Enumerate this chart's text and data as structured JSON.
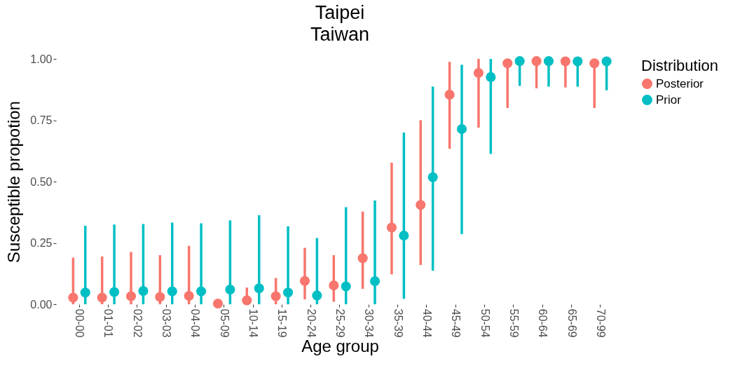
{
  "chart_data": {
    "type": "scatter",
    "title": "Taipei",
    "subtitle": "Taiwan",
    "xlabel": "Age group",
    "ylabel": "Susceptible propotion",
    "legend_title": "Distribution",
    "legend": "right",
    "grid": false,
    "marker": "circle",
    "categories": [
      "00-00",
      "01-01",
      "02-02",
      "03-03",
      "04-04",
      "05-09",
      "10-14",
      "15-19",
      "20-24",
      "25-29",
      "30-34",
      "35-39",
      "40-44",
      "45-49",
      "50-54",
      "55-59",
      "60-64",
      "65-69",
      "70-99"
    ],
    "ylim": [
      0,
      1
    ],
    "yticks": [
      {
        "value": 0,
        "label": "0.00"
      },
      {
        "value": 0.25,
        "label": "0.25"
      },
      {
        "value": 0.5,
        "label": "0.50"
      },
      {
        "value": 0.75,
        "label": "0.75"
      },
      {
        "value": 1,
        "label": "1.00"
      }
    ],
    "series": [
      {
        "name": "Posterior",
        "color": "#f8766d",
        "values": [
          0.027,
          0.027,
          0.033,
          0.03,
          0.034,
          0.003,
          0.016,
          0.033,
          0.095,
          0.077,
          0.188,
          0.313,
          0.405,
          0.854,
          0.943,
          0.982,
          0.991,
          0.99,
          0.982
        ],
        "errors": [
          [
            0,
            0.19
          ],
          [
            0,
            0.195
          ],
          [
            0,
            0.213
          ],
          [
            0,
            0.2
          ],
          [
            0,
            0.238
          ],
          null,
          [
            0,
            0.068
          ],
          [
            0,
            0.107
          ],
          [
            0.02,
            0.23
          ],
          [
            0.01,
            0.2
          ],
          [
            0.063,
            0.378
          ],
          [
            0.122,
            0.577
          ],
          [
            0.16,
            0.75
          ],
          [
            0.634,
            0.988
          ],
          [
            0.72,
            1.0
          ],
          [
            0.8,
            1.0
          ],
          [
            0.88,
            0.991
          ],
          [
            0.884,
            0.99
          ],
          [
            0.8,
            1.0
          ]
        ]
      },
      {
        "name": "Prior",
        "color": "#00bfc4",
        "values": [
          0.048,
          0.05,
          0.054,
          0.053,
          0.053,
          0.06,
          0.065,
          0.048,
          0.036,
          0.073,
          0.094,
          0.28,
          0.518,
          0.714,
          0.926,
          0.991,
          0.991,
          0.99,
          0.99
        ],
        "errors": [
          [
            0,
            0.32
          ],
          [
            0,
            0.325
          ],
          [
            0,
            0.327
          ],
          [
            0,
            0.333
          ],
          [
            0,
            0.33
          ],
          [
            0,
            0.342
          ],
          [
            0,
            0.363
          ],
          [
            0,
            0.318
          ],
          [
            0,
            0.27
          ],
          [
            0,
            0.396
          ],
          [
            0,
            0.423
          ],
          [
            0.022,
            0.7
          ],
          [
            0.137,
            0.887
          ],
          [
            0.286,
            0.976
          ],
          [
            0.613,
            1.0
          ],
          [
            0.89,
            0.991
          ],
          [
            0.887,
            0.991
          ],
          [
            0.887,
            0.99
          ],
          [
            0.872,
            0.99
          ]
        ]
      }
    ]
  }
}
